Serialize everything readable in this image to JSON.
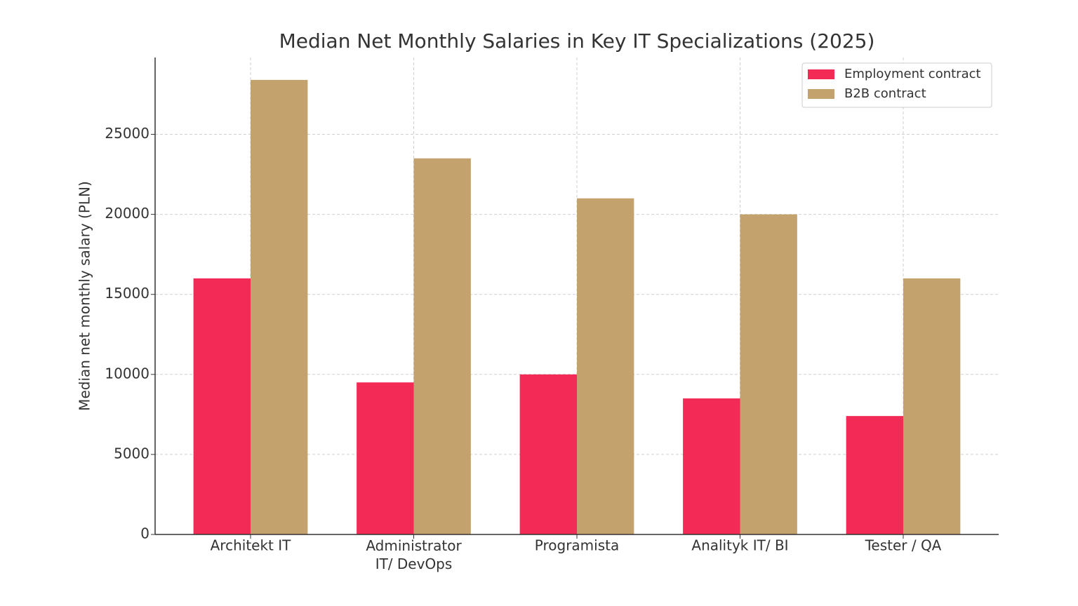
{
  "chart_data": {
    "type": "bar",
    "title": "Median Net Monthly Salaries in Key IT Specializations (2025)",
    "y_label": "Median net monthly salary (PLN)",
    "categories": [
      "Architekt IT",
      "Administrator\nIT/ DevOps",
      "Programista",
      "Analityk IT/ BI",
      "Tester / QA"
    ],
    "series": [
      {
        "name": "Employment contract",
        "color": "#f22a55",
        "values": [
          16000,
          9500,
          10000,
          8500,
          7400
        ]
      },
      {
        "name": "B2B contract",
        "color": "#c4a26d",
        "values": [
          28400,
          23500,
          21000,
          20000,
          16000
        ]
      }
    ],
    "ylim": [
      0,
      29800
    ],
    "yticks": [
      0,
      5000,
      10000,
      15000,
      20000,
      25000
    ],
    "grid": true,
    "legend": "upper right"
  }
}
